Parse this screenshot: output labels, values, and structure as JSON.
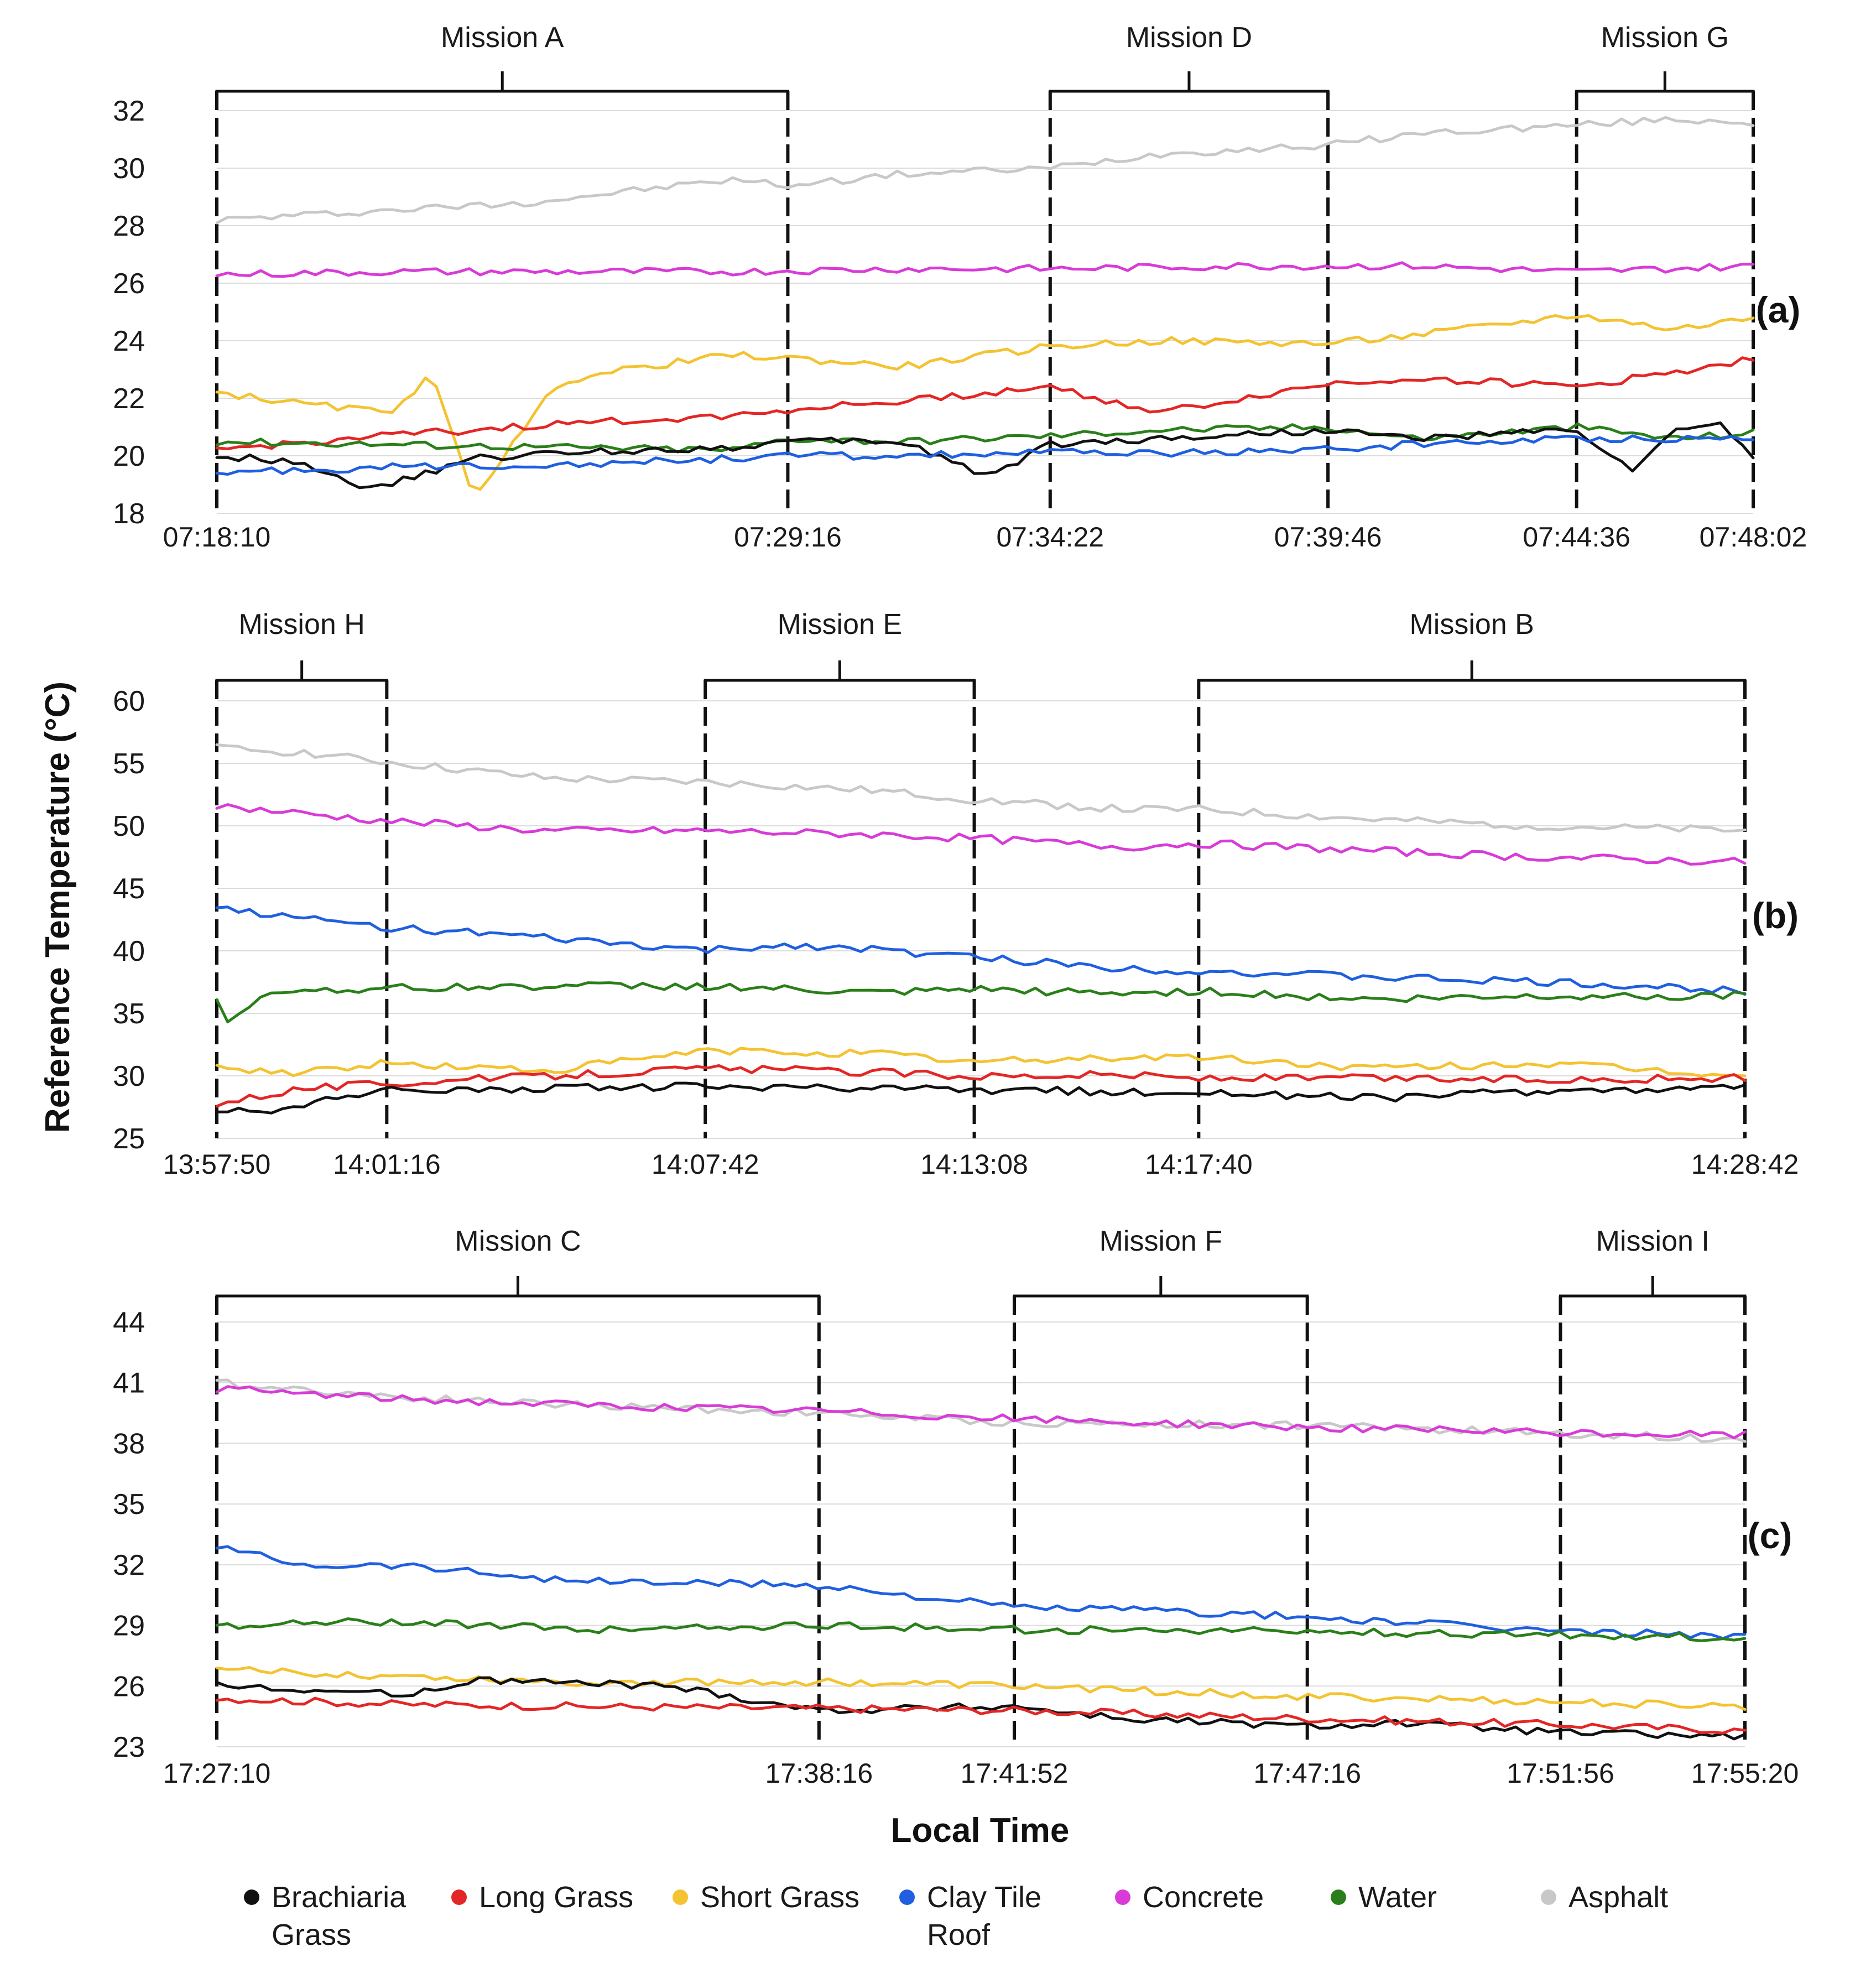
{
  "y_axis_title": "Reference Temperature (°C)",
  "x_axis_title": "Local Time",
  "legend": [
    {
      "id": "brachiaria",
      "lines": [
        "Brachiaria",
        "Grass"
      ],
      "color": "#111111"
    },
    {
      "id": "long_grass",
      "lines": [
        "Long Grass"
      ],
      "color": "#e32626"
    },
    {
      "id": "short_grass",
      "lines": [
        "Short Grass"
      ],
      "color": "#f3c331"
    },
    {
      "id": "clay_tile",
      "lines": [
        "Clay Tile",
        "Roof"
      ],
      "color": "#1f5fe0"
    },
    {
      "id": "concrete",
      "lines": [
        "Concrete"
      ],
      "color": "#d83bd8"
    },
    {
      "id": "water",
      "lines": [
        "Water"
      ],
      "color": "#2a7f1a"
    },
    {
      "id": "asphalt",
      "lines": [
        "Asphalt"
      ],
      "color": "#c8c8c8"
    }
  ],
  "chart_data": [
    {
      "type": "line",
      "panel_label": "(a)",
      "ylim": [
        18,
        32
      ],
      "yticks": [
        "18",
        "20",
        "22",
        "24",
        "26",
        "28",
        "30",
        "32"
      ],
      "xticks": [
        "07:18:10",
        "07:29:16",
        "07:34:22",
        "07:39:46",
        "07:44:36",
        "07:48:02"
      ],
      "x_seconds": [
        0,
        666,
        972,
        1296,
        1586,
        1792
      ],
      "missions": [
        {
          "label": "Mission A",
          "start": "07:18:10",
          "end": "07:29:16"
        },
        {
          "label": "Mission D",
          "start": "07:34:22",
          "end": "07:39:46"
        },
        {
          "label": "Mission G",
          "start": "07:44:36",
          "end": "07:48:02"
        }
      ],
      "series": [
        {
          "name": "Asphalt",
          "color": "#c8c8c8",
          "x": [
            0,
            120,
            240,
            360,
            480,
            600,
            666,
            800,
            972,
            1100,
            1296,
            1400,
            1586,
            1700,
            1792
          ],
          "y": [
            28.2,
            28.4,
            28.6,
            28.8,
            29.2,
            29.6,
            29.4,
            29.8,
            30.0,
            30.5,
            30.8,
            31.2,
            31.5,
            31.7,
            31.6
          ]
        },
        {
          "name": "Concrete",
          "color": "#d83bd8",
          "x": [
            0,
            200,
            400,
            600,
            800,
            972,
            1200,
            1400,
            1586,
            1792
          ],
          "y": [
            26.3,
            26.4,
            26.4,
            26.4,
            26.5,
            26.5,
            26.6,
            26.6,
            26.4,
            26.6
          ]
        },
        {
          "name": "Short Grass",
          "color": "#f3c331",
          "x": [
            0,
            100,
            200,
            250,
            300,
            400,
            500,
            600,
            666,
            800,
            972,
            1100,
            1296,
            1400,
            1586,
            1700,
            1792
          ],
          "y": [
            22.2,
            21.8,
            21.5,
            22.8,
            18.6,
            22.6,
            23.1,
            23.5,
            23.4,
            23.1,
            23.8,
            24.0,
            23.9,
            24.2,
            24.9,
            24.4,
            24.8
          ]
        },
        {
          "name": "Long Grass",
          "color": "#e32626",
          "x": [
            0,
            200,
            400,
            600,
            666,
            800,
            972,
            1100,
            1296,
            1400,
            1586,
            1700,
            1792
          ],
          "y": [
            20.2,
            20.7,
            21.1,
            21.4,
            21.6,
            21.9,
            22.4,
            21.5,
            22.5,
            22.7,
            22.4,
            22.9,
            23.4
          ]
        },
        {
          "name": "Water",
          "color": "#2a7f1a",
          "x": [
            0,
            200,
            400,
            600,
            666,
            800,
            972,
            1100,
            1296,
            1400,
            1586,
            1700,
            1792
          ],
          "y": [
            20.5,
            20.4,
            20.3,
            20.2,
            20.6,
            20.5,
            20.7,
            20.9,
            21.0,
            20.6,
            21.0,
            20.6,
            20.8
          ]
        },
        {
          "name": "Brachiaria Grass",
          "color": "#111111",
          "x": [
            0,
            100,
            180,
            300,
            400,
            500,
            600,
            666,
            800,
            900,
            972,
            1100,
            1296,
            1400,
            1586,
            1650,
            1700,
            1750,
            1792
          ],
          "y": [
            20.0,
            19.8,
            18.8,
            19.9,
            20.1,
            20.2,
            20.3,
            20.5,
            20.5,
            19.3,
            20.4,
            20.6,
            20.9,
            20.6,
            20.9,
            19.5,
            20.8,
            21.2,
            19.9
          ]
        },
        {
          "name": "Clay Tile Roof",
          "color": "#1f5fe0",
          "x": [
            0,
            200,
            400,
            600,
            666,
            800,
            972,
            1100,
            1296,
            1400,
            1586,
            1700,
            1792
          ],
          "y": [
            19.4,
            19.6,
            19.7,
            19.9,
            20.0,
            20.0,
            20.1,
            20.1,
            20.2,
            20.4,
            20.6,
            20.6,
            20.6
          ]
        }
      ]
    },
    {
      "type": "line",
      "panel_label": "(b)",
      "ylim": [
        25,
        60
      ],
      "yticks": [
        "25",
        "30",
        "35",
        "40",
        "45",
        "50",
        "55",
        "60"
      ],
      "xticks": [
        "13:57:50",
        "14:01:16",
        "14:07:42",
        "14:13:08",
        "14:17:40",
        "14:28:42"
      ],
      "x_seconds": [
        0,
        206,
        592,
        918,
        1190,
        1852
      ],
      "missions": [
        {
          "label": "Mission H",
          "start": "13:57:50",
          "end": "14:01:16"
        },
        {
          "label": "Mission E",
          "start": "14:07:42",
          "end": "14:13:08"
        },
        {
          "label": "Mission B",
          "start": "14:17:40",
          "end": "14:28:42"
        }
      ],
      "series": [
        {
          "name": "Asphalt",
          "color": "#c8c8c8",
          "x": [
            0,
            100,
            206,
            400,
            592,
            800,
            918,
            1100,
            1190,
            1400,
            1600,
            1852
          ],
          "y": [
            56.2,
            55.9,
            55.1,
            53.8,
            53.5,
            52.8,
            52.1,
            51.3,
            51.3,
            50.5,
            50.0,
            49.6
          ]
        },
        {
          "name": "Concrete",
          "color": "#d83bd8",
          "x": [
            0,
            100,
            206,
            400,
            592,
            800,
            918,
            1100,
            1190,
            1400,
            1600,
            1852
          ],
          "y": [
            51.6,
            51.0,
            50.4,
            49.6,
            49.6,
            49.3,
            49.0,
            48.3,
            48.6,
            48.0,
            47.5,
            47.1
          ]
        },
        {
          "name": "Clay Tile Roof",
          "color": "#1f5fe0",
          "x": [
            0,
            100,
            206,
            400,
            592,
            700,
            918,
            1100,
            1190,
            1400,
            1600,
            1852
          ],
          "y": [
            43.5,
            42.6,
            41.9,
            41.0,
            40.0,
            40.5,
            39.5,
            38.6,
            38.4,
            37.9,
            37.5,
            36.8
          ]
        },
        {
          "name": "Water",
          "color": "#2a7f1a",
          "x": [
            0,
            15,
            60,
            206,
            400,
            592,
            800,
            918,
            1100,
            1190,
            1400,
            1600,
            1852
          ],
          "y": [
            36.0,
            34.0,
            36.8,
            37.0,
            37.2,
            37.2,
            36.6,
            36.9,
            36.6,
            36.8,
            36.1,
            36.4,
            36.4
          ]
        },
        {
          "name": "Short Grass",
          "color": "#f3c331",
          "x": [
            0,
            100,
            206,
            400,
            592,
            800,
            918,
            1100,
            1190,
            1400,
            1600,
            1852
          ],
          "y": [
            30.6,
            30.3,
            31.0,
            30.4,
            32.0,
            31.8,
            31.1,
            31.5,
            31.5,
            30.6,
            31.0,
            30.0
          ]
        },
        {
          "name": "Long Grass",
          "color": "#e32626",
          "x": [
            0,
            100,
            206,
            400,
            592,
            800,
            918,
            1100,
            1190,
            1400,
            1600,
            1852
          ],
          "y": [
            27.8,
            29.0,
            29.4,
            30.0,
            30.6,
            30.3,
            30.0,
            30.1,
            29.8,
            29.8,
            29.7,
            29.8
          ]
        },
        {
          "name": "Brachiaria Grass",
          "color": "#111111",
          "x": [
            0,
            60,
            206,
            400,
            592,
            800,
            918,
            1100,
            1190,
            1400,
            1600,
            1852
          ],
          "y": [
            27.2,
            27.2,
            28.8,
            29.0,
            29.2,
            28.9,
            28.9,
            28.7,
            28.7,
            28.2,
            28.8,
            29.0
          ]
        }
      ]
    },
    {
      "type": "line",
      "panel_label": "(c)",
      "ylim": [
        23,
        44
      ],
      "yticks": [
        "23",
        "26",
        "29",
        "32",
        "35",
        "38",
        "41",
        "44"
      ],
      "xticks": [
        "17:27:10",
        "17:38:16",
        "17:41:52",
        "17:47:16",
        "17:51:56",
        "17:55:20"
      ],
      "x_seconds": [
        0,
        666,
        882,
        1206,
        1486,
        1690
      ],
      "missions": [
        {
          "label": "Mission C",
          "start": "17:27:10",
          "end": "17:38:16"
        },
        {
          "label": "Mission F",
          "start": "17:41:52",
          "end": "17:47:16"
        },
        {
          "label": "Mission I",
          "start": "17:51:56",
          "end": "17:55:20"
        }
      ],
      "series": [
        {
          "name": "Asphalt",
          "color": "#c8c8c8",
          "x": [
            0,
            200,
            400,
            666,
            882,
            1206,
            1486,
            1690
          ],
          "y": [
            41.0,
            40.3,
            39.9,
            39.5,
            39.0,
            38.9,
            38.5,
            38.2
          ]
        },
        {
          "name": "Concrete",
          "color": "#d83bd8",
          "x": [
            0,
            200,
            400,
            666,
            882,
            1206,
            1486,
            1690
          ],
          "y": [
            40.7,
            40.2,
            39.9,
            39.6,
            39.2,
            38.8,
            38.5,
            38.4
          ]
        },
        {
          "name": "Clay Tile Roof",
          "color": "#1f5fe0",
          "x": [
            0,
            100,
            200,
            400,
            666,
            882,
            1000,
            1206,
            1486,
            1690
          ],
          "y": [
            32.9,
            32.0,
            32.0,
            31.2,
            31.0,
            29.9,
            29.8,
            29.4,
            28.7,
            28.5
          ]
        },
        {
          "name": "Water",
          "color": "#2a7f1a",
          "x": [
            0,
            200,
            400,
            666,
            882,
            1206,
            1486,
            1690
          ],
          "y": [
            29.0,
            29.2,
            28.8,
            29.0,
            28.8,
            28.7,
            28.5,
            28.4
          ]
        },
        {
          "name": "Short Grass",
          "color": "#f3c331",
          "x": [
            0,
            200,
            400,
            666,
            882,
            1206,
            1486,
            1690
          ],
          "y": [
            26.8,
            26.5,
            26.2,
            26.2,
            26.0,
            25.5,
            25.2,
            25.0
          ]
        },
        {
          "name": "Brachiaria Grass",
          "color": "#111111",
          "x": [
            0,
            200,
            300,
            500,
            666,
            882,
            1000,
            1206,
            1300,
            1486,
            1690
          ],
          "y": [
            26.0,
            25.6,
            26.3,
            26.0,
            24.8,
            25.0,
            24.4,
            24.0,
            24.2,
            23.7,
            23.5
          ]
        },
        {
          "name": "Long Grass",
          "color": "#e32626",
          "x": [
            0,
            200,
            400,
            666,
            882,
            1206,
            1486,
            1690
          ],
          "y": [
            25.4,
            25.1,
            25.0,
            24.9,
            24.8,
            24.4,
            24.1,
            23.8
          ]
        }
      ]
    }
  ]
}
